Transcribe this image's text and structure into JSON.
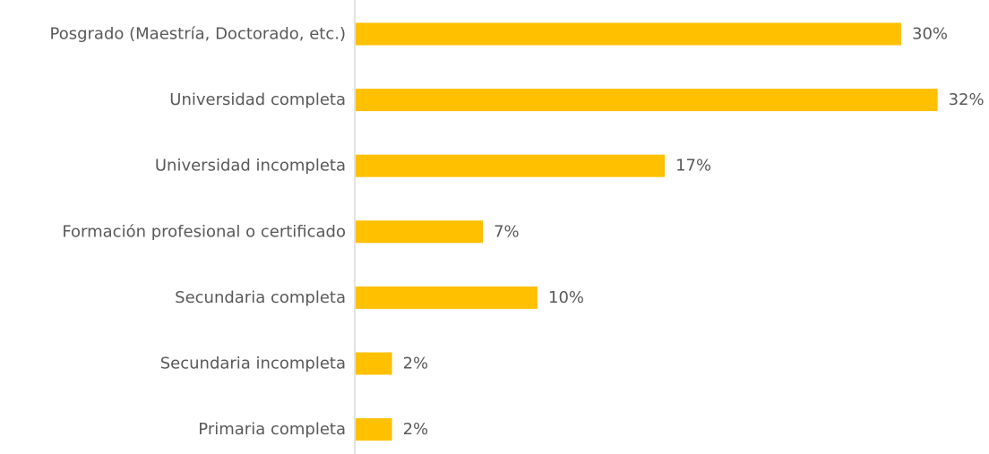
{
  "chart_data": {
    "type": "bar",
    "orientation": "horizontal",
    "categories": [
      "Posgrado (Maestría, Doctorado, etc.)",
      "Universidad completa",
      "Universidad incompleta",
      "Formación profesional o certificado",
      "Secundaria completa",
      "Secundaria incompleta",
      "Primaria completa"
    ],
    "values": [
      30,
      32,
      17,
      7,
      10,
      2,
      2
    ],
    "value_labels": [
      "30%",
      "32%",
      "17%",
      "7%",
      "10%",
      "2%",
      "2%"
    ],
    "unit": "%",
    "xlim": [
      0,
      32
    ],
    "grid": false,
    "legend": "none",
    "colors": {
      "bar": "#FFC000",
      "axis": "#D9D9D9",
      "text": "#595959"
    }
  }
}
